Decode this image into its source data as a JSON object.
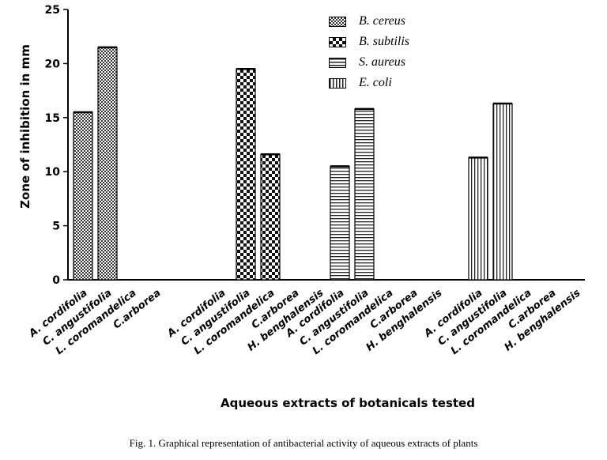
{
  "chart_data": {
    "type": "bar",
    "ylabel": "Zone of inhibition in mm",
    "xlabel": "Aqueous extracts of botanicals tested",
    "caption": "Fig. 1. Graphical representation of antibacterial activity of aqueous extracts of plants",
    "ylim": [
      0,
      25
    ],
    "yticks": [
      0,
      5,
      10,
      15,
      20,
      25
    ],
    "legend_position": "top-right",
    "series": [
      {
        "name": "B. cereus",
        "pattern": "fine-check",
        "categories": [
          "A. cordifolia",
          "C. angustifolia",
          "L. coromandelica",
          "C.arborea"
        ],
        "values": [
          15.5,
          21.5,
          0,
          0
        ]
      },
      {
        "name": "B. subtilis",
        "pattern": "coarse-check",
        "categories": [
          "A. cordifolia",
          "C. angustifolia",
          "L. coromandelica",
          "C.arborea",
          "H. benghalensis"
        ],
        "values": [
          0,
          19.5,
          11.6,
          0,
          0
        ]
      },
      {
        "name": "S. aureus",
        "pattern": "horizontal-stripes",
        "categories": [
          "A. cordifolia",
          "C. angustifolia",
          "L. coromandelica",
          "C.arborea",
          "H. benghalensis"
        ],
        "values": [
          10.5,
          15.8,
          0,
          0,
          0
        ]
      },
      {
        "name": "E. coli",
        "pattern": "vertical-stripes",
        "categories": [
          "A. cordifolia",
          "C. angustifolia",
          "L. coromandelica",
          "C.arborea",
          "H. benghalensis"
        ],
        "values": [
          11.3,
          16.3,
          0,
          0,
          0
        ]
      }
    ]
  }
}
